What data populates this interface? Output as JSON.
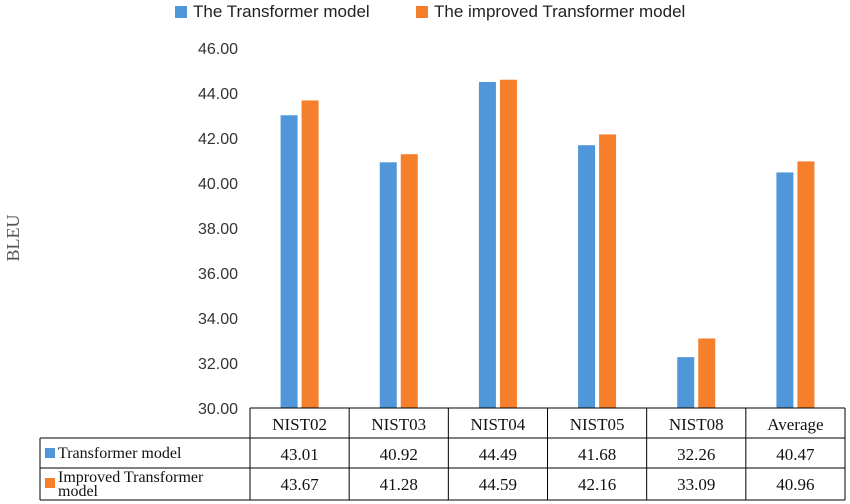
{
  "chart_data": {
    "type": "bar",
    "ylabel": "BLEU",
    "ylim": [
      30,
      46
    ],
    "yticks": [
      "30.00",
      "32.00",
      "34.00",
      "36.00",
      "38.00",
      "40.00",
      "42.00",
      "44.00",
      "46.00"
    ],
    "grid": false,
    "legend_position": "top",
    "categories": [
      "NIST02",
      "NIST03",
      "NIST04",
      "NIST05",
      "NIST08",
      "Average"
    ],
    "series": [
      {
        "name": "The Transformer model",
        "table_label": "Transformer model",
        "color": "#4f97d9",
        "values": [
          43.01,
          40.92,
          44.49,
          41.68,
          32.26,
          40.47
        ],
        "display_values": [
          "43.01",
          "40.92",
          "44.49",
          "41.68",
          "32.26",
          "40.47"
        ]
      },
      {
        "name": "The improved Transformer model",
        "table_label_lines": [
          "Improved Transformer",
          "model"
        ],
        "color": "#f57f2a",
        "values": [
          43.67,
          41.28,
          44.59,
          42.16,
          33.09,
          40.96
        ],
        "display_values": [
          "43.67",
          "41.28",
          "44.59",
          "42.16",
          "33.09",
          "40.96"
        ]
      }
    ]
  }
}
